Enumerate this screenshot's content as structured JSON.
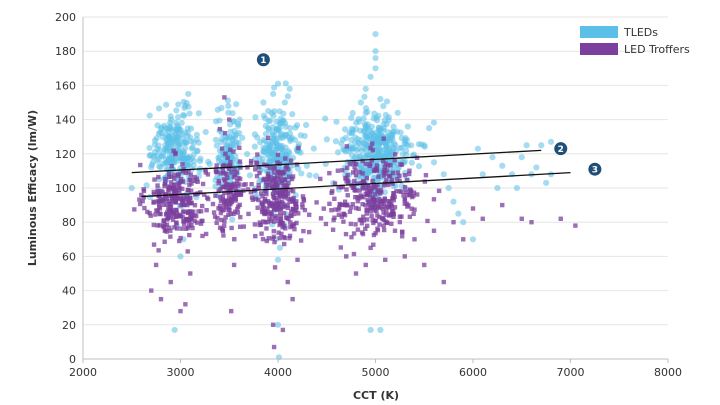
{
  "chart_data": {
    "type": "scatter",
    "title": "",
    "xlabel": "CCT (K)",
    "ylabel": "Luminous Efficacy (lm/W)",
    "xlim": [
      2000,
      8000
    ],
    "ylim": [
      0,
      200
    ],
    "xticks": [
      2000,
      3000,
      4000,
      5000,
      6000,
      7000,
      8000
    ],
    "yticks": [
      0,
      20,
      40,
      60,
      80,
      100,
      120,
      140,
      160,
      180,
      200
    ],
    "legend_position": "top-right",
    "series": [
      {
        "name": "TLEDs",
        "color": "#5bc0e8",
        "marker": "circle",
        "clusters": [
          {
            "x_center": 2950,
            "x_spread": 120,
            "y_center": 122,
            "y_spread": 12,
            "count": 230
          },
          {
            "x_center": 3500,
            "x_spread": 70,
            "y_center": 120,
            "y_spread": 12,
            "count": 120
          },
          {
            "x_center": 4000,
            "x_spread": 120,
            "y_center": 118,
            "y_spread": 13,
            "count": 230
          },
          {
            "x_center": 5000,
            "x_spread": 190,
            "y_center": 120,
            "y_spread": 13,
            "count": 360
          }
        ],
        "points": [
          [
            2500,
            100
          ],
          [
            2700,
            112
          ],
          [
            2720,
            118
          ],
          [
            2780,
            105
          ],
          [
            3050,
            148
          ],
          [
            3080,
            155
          ],
          [
            2940,
            17
          ],
          [
            3000,
            60
          ],
          [
            3030,
            70
          ],
          [
            2960,
            78
          ],
          [
            3850,
            150
          ],
          [
            3900,
            145
          ],
          [
            3950,
            155
          ],
          [
            4000,
            161
          ],
          [
            4070,
            150
          ],
          [
            4120,
            158
          ],
          [
            4000,
            20
          ],
          [
            4010,
            1
          ],
          [
            4000,
            58
          ],
          [
            3980,
            70
          ],
          [
            4020,
            65
          ],
          [
            4850,
            150
          ],
          [
            4900,
            158
          ],
          [
            4950,
            165
          ],
          [
            5000,
            170
          ],
          [
            5000,
            176
          ],
          [
            5000,
            180
          ],
          [
            5000,
            190
          ],
          [
            5050,
            152
          ],
          [
            4950,
            17
          ],
          [
            5050,
            17
          ],
          [
            5500,
            125
          ],
          [
            5550,
            135
          ],
          [
            5600,
            115
          ],
          [
            5700,
            108
          ],
          [
            5750,
            100
          ],
          [
            5800,
            92
          ],
          [
            5850,
            85
          ],
          [
            5900,
            80
          ],
          [
            6000,
            70
          ],
          [
            6050,
            123
          ],
          [
            6100,
            108
          ],
          [
            6200,
            118
          ],
          [
            6250,
            100
          ],
          [
            6300,
            113
          ],
          [
            6400,
            108
          ],
          [
            6450,
            100
          ],
          [
            6500,
            118
          ],
          [
            6550,
            125
          ],
          [
            6600,
            108
          ],
          [
            6650,
            112
          ],
          [
            6700,
            125
          ],
          [
            6750,
            103
          ],
          [
            6800,
            108
          ],
          [
            6800,
            127
          ]
        ]
      },
      {
        "name": "LED Troffers",
        "color": "#7b3f9e",
        "marker": "square",
        "clusters": [
          {
            "x_center": 2950,
            "x_spread": 150,
            "y_center": 92,
            "y_spread": 11,
            "count": 260
          },
          {
            "x_center": 3500,
            "x_spread": 90,
            "y_center": 98,
            "y_spread": 13,
            "count": 140
          },
          {
            "x_center": 4000,
            "x_spread": 150,
            "y_center": 93,
            "y_spread": 12,
            "count": 260
          },
          {
            "x_center": 5000,
            "x_spread": 230,
            "y_center": 95,
            "y_spread": 12,
            "count": 300
          }
        ],
        "points": [
          [
            2700,
            40
          ],
          [
            2750,
            55
          ],
          [
            2800,
            35
          ],
          [
            2900,
            45
          ],
          [
            3000,
            28
          ],
          [
            3050,
            32
          ],
          [
            3100,
            50
          ],
          [
            3450,
            153
          ],
          [
            3500,
            140
          ],
          [
            3520,
            28
          ],
          [
            3550,
            55
          ],
          [
            3950,
            20
          ],
          [
            3960,
            7
          ],
          [
            4050,
            17
          ],
          [
            4100,
            45
          ],
          [
            4150,
            35
          ],
          [
            4200,
            58
          ],
          [
            4700,
            60
          ],
          [
            4800,
            50
          ],
          [
            4900,
            55
          ],
          [
            4950,
            65
          ],
          [
            5100,
            58
          ],
          [
            5200,
            75
          ],
          [
            5300,
            60
          ],
          [
            5400,
            70
          ],
          [
            5500,
            55
          ],
          [
            5600,
            75
          ],
          [
            5700,
            45
          ],
          [
            5800,
            80
          ],
          [
            5900,
            70
          ],
          [
            6000,
            88
          ],
          [
            6100,
            82
          ],
          [
            6300,
            90
          ],
          [
            6500,
            82
          ],
          [
            6600,
            80
          ],
          [
            6900,
            82
          ],
          [
            7050,
            78
          ]
        ]
      }
    ],
    "trend_lines": [
      {
        "label": "2",
        "x": [
          2500,
          6700
        ],
        "y": [
          109,
          122
        ]
      },
      {
        "label": "3",
        "x": [
          2600,
          7000
        ],
        "y": [
          95,
          109
        ]
      }
    ],
    "annotations": [
      {
        "text": "1",
        "x": 3850,
        "y": 175
      },
      {
        "text": "2",
        "x": 6900,
        "y": 123
      },
      {
        "text": "3",
        "x": 7250,
        "y": 111
      }
    ],
    "badge_color": "#1f4e79"
  }
}
